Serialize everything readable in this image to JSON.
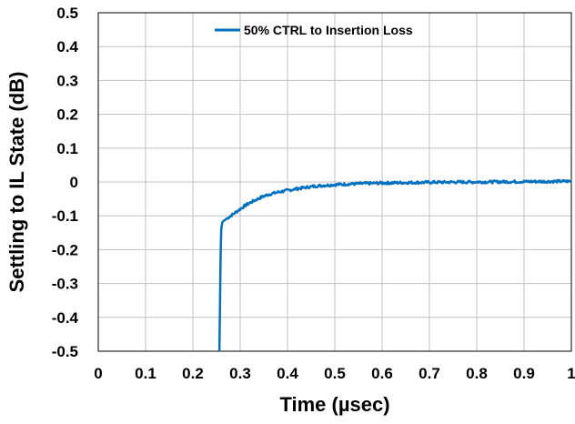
{
  "chart_data": {
    "type": "line",
    "title": "",
    "xlabel": "Time (µsec)",
    "ylabel": "Settling to IL State (dB)",
    "xlim": [
      0,
      1
    ],
    "ylim": [
      -0.5,
      0.5
    ],
    "x_ticks": [
      "0",
      "0.1",
      "0.2",
      "0.3",
      "0.4",
      "0.5",
      "0.6",
      "0.7",
      "0.8",
      "0.9",
      "1"
    ],
    "y_ticks": [
      "0.5",
      "0.4",
      "0.3",
      "0.2",
      "0.1",
      "0",
      "-0.1",
      "-0.2",
      "-0.3",
      "-0.4",
      "-0.5"
    ],
    "grid": true,
    "legend_position": "top-center",
    "series": [
      {
        "name": "50% CTRL to Insertion Loss",
        "color": "#0070C0",
        "x": [
          0.256,
          0.257,
          0.258,
          0.259,
          0.26,
          0.262,
          0.265,
          0.27,
          0.275,
          0.28,
          0.29,
          0.3,
          0.31,
          0.32,
          0.33,
          0.34,
          0.35,
          0.36,
          0.38,
          0.4,
          0.42,
          0.44,
          0.46,
          0.48,
          0.5,
          0.55,
          0.6,
          0.7,
          0.8,
          0.9,
          1.0
        ],
        "y": [
          -0.5,
          -0.4,
          -0.28,
          -0.19,
          -0.14,
          -0.12,
          -0.115,
          -0.11,
          -0.105,
          -0.1,
          -0.09,
          -0.08,
          -0.07,
          -0.062,
          -0.055,
          -0.048,
          -0.042,
          -0.037,
          -0.03,
          -0.025,
          -0.02,
          -0.016,
          -0.012,
          -0.01,
          -0.008,
          -0.005,
          -0.003,
          -0.001,
          0.0,
          0.001,
          0.002
        ]
      }
    ]
  }
}
